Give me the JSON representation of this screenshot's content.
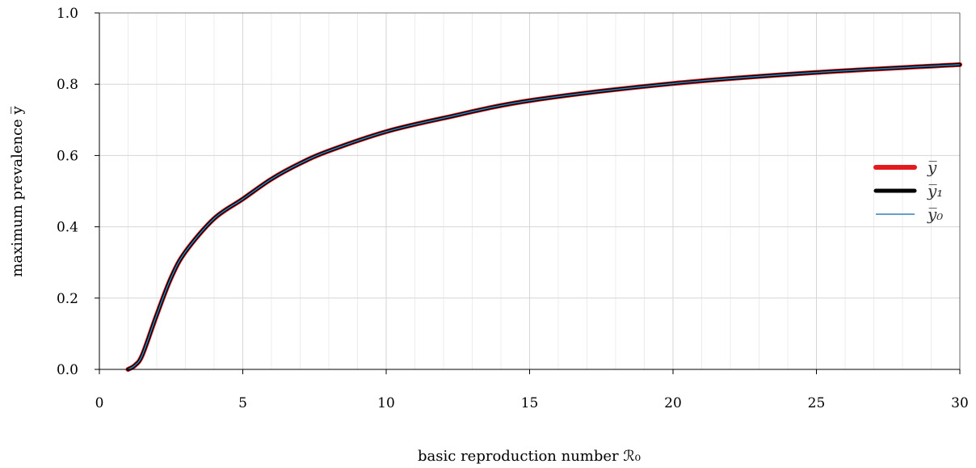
{
  "chart_data": {
    "type": "line",
    "xlabel": "basic reproduction number ℛ₀",
    "ylabel": "maximum prevalence y̅",
    "xlim": [
      0,
      30
    ],
    "ylim": [
      0,
      1.0
    ],
    "x_ticks": [
      0,
      5,
      10,
      15,
      20,
      25,
      30
    ],
    "x_tick_labels": [
      "0",
      "5",
      "10",
      "15",
      "20",
      "25",
      "30"
    ],
    "y_ticks": [
      0,
      0.2,
      0.4,
      0.6,
      0.8,
      1.0
    ],
    "y_tick_labels": [
      "0.0",
      "0.2",
      "0.4",
      "0.6",
      "0.8",
      "1.0"
    ],
    "grid": true,
    "legend_position": "right",
    "series": [
      {
        "name": "y̅",
        "color": "#e41a1c"
      },
      {
        "name": "y̅₁",
        "color": "#000000"
      },
      {
        "name": "y̅₀",
        "color": "#377eb8"
      }
    ],
    "x": [
      1.0,
      1.25,
      1.5,
      2,
      2.5,
      3,
      4,
      5,
      6,
      7,
      8,
      10,
      12,
      15,
      20,
      25,
      30
    ],
    "y": [
      0.0,
      0.012,
      0.041,
      0.153,
      0.257,
      0.33,
      0.423,
      0.478,
      0.534,
      0.578,
      0.613,
      0.667,
      0.705,
      0.754,
      0.802,
      0.833,
      0.855
    ]
  }
}
